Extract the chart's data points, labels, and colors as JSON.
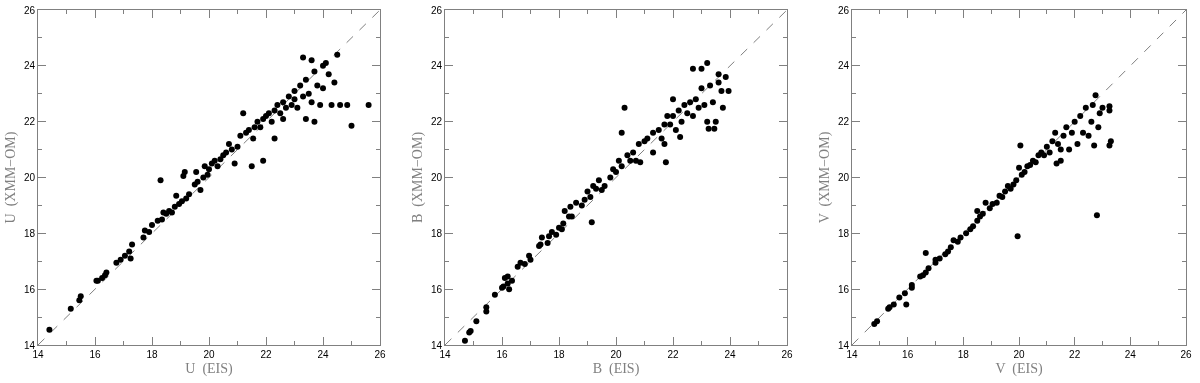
{
  "chart_data": [
    {
      "type": "scatter",
      "xlabel": "U  (EIS)",
      "ylabel": "U  (XMM−OM)",
      "marker": "circle",
      "grid": false,
      "xlim": [
        14,
        26
      ],
      "ylim": [
        14,
        26
      ],
      "xticks": [
        14,
        {
          "value": 15,
          "label": null
        },
        16,
        {
          "value": 17,
          "label": null
        },
        18,
        {
          "value": 19,
          "label": null
        },
        20,
        {
          "value": 21,
          "label": null
        },
        22,
        {
          "value": 23,
          "label": null
        },
        24,
        {
          "value": 25,
          "label": null
        },
        26
      ],
      "yticks": [
        14,
        {
          "value": 15,
          "label": null
        },
        16,
        {
          "value": 17,
          "label": null
        },
        18,
        {
          "value": 19,
          "label": null
        },
        20,
        {
          "value": 21,
          "label": null
        },
        22,
        {
          "value": 23,
          "label": null
        },
        24,
        {
          "value": 25,
          "label": null
        },
        26
      ],
      "series": [
        {
          "type": "line",
          "marker": "none",
          "line_style": "dashed",
          "color": "#808080",
          "x": [
            14,
            26
          ],
          "values": [
            14,
            26
          ]
        },
        {
          "color": "#000000",
          "x": [
            14.4,
            15.15,
            15.45,
            15.5,
            16.05,
            16.1,
            16.25,
            16.35,
            16.4,
            16.75,
            16.9,
            17.05,
            17.2,
            17.25,
            17.3,
            17.7,
            17.75,
            17.9,
            18.0,
            18.2,
            18.3,
            18.35,
            18.4,
            18.5,
            18.6,
            18.7,
            18.8,
            18.85,
            18.95,
            19.05,
            19.1,
            19.15,
            19.2,
            19.3,
            19.5,
            19.55,
            19.6,
            19.7,
            19.8,
            19.85,
            19.95,
            20.0,
            20.1,
            20.2,
            20.3,
            20.4,
            20.5,
            20.6,
            20.7,
            20.8,
            20.9,
            21.0,
            21.1,
            21.2,
            21.3,
            21.4,
            21.5,
            21.55,
            21.6,
            21.7,
            21.8,
            21.9,
            21.9,
            22.0,
            22.1,
            22.2,
            22.3,
            22.3,
            22.4,
            22.5,
            22.6,
            22.6,
            22.7,
            22.8,
            22.9,
            23.0,
            23.0,
            23.1,
            23.2,
            23.3,
            23.3,
            23.4,
            23.4,
            23.5,
            23.6,
            23.6,
            23.7,
            23.7,
            23.8,
            23.9,
            24.0,
            24.0,
            24.1,
            24.2,
            24.3,
            24.4,
            24.5,
            24.6,
            24.85,
            25.0,
            25.6
          ],
          "values": [
            14.55,
            15.3,
            15.6,
            15.75,
            16.3,
            16.3,
            16.4,
            16.5,
            16.6,
            16.95,
            17.05,
            17.2,
            17.35,
            17.1,
            17.6,
            17.85,
            18.1,
            18.05,
            18.3,
            18.45,
            19.9,
            18.5,
            18.75,
            18.7,
            18.8,
            18.75,
            18.95,
            19.35,
            19.05,
            19.15,
            20.05,
            20.2,
            19.25,
            19.4,
            19.75,
            20.2,
            19.85,
            19.55,
            20.0,
            20.4,
            20.1,
            20.3,
            20.5,
            20.6,
            20.4,
            20.65,
            20.8,
            20.9,
            21.2,
            21.0,
            20.5,
            21.1,
            21.5,
            22.3,
            21.6,
            21.7,
            20.4,
            21.4,
            21.8,
            22.0,
            21.8,
            20.6,
            22.1,
            22.2,
            22.3,
            22.0,
            21.4,
            22.4,
            22.6,
            22.3,
            22.1,
            22.7,
            22.5,
            22.9,
            22.6,
            23.1,
            22.8,
            22.5,
            23.3,
            24.3,
            22.9,
            23.5,
            22.1,
            23.0,
            24.2,
            22.7,
            22.0,
            23.8,
            23.3,
            22.6,
            24.0,
            23.2,
            24.1,
            23.7,
            22.6,
            23.4,
            24.4,
            22.6,
            22.6,
            21.85,
            22.6
          ]
        }
      ]
    },
    {
      "type": "scatter",
      "xlabel": "B  (EIS)",
      "ylabel": "B  (XMM−OM)",
      "marker": "circle",
      "grid": false,
      "xlim": [
        14,
        26
      ],
      "ylim": [
        14,
        26
      ],
      "xticks": [
        14,
        {
          "value": 15,
          "label": null
        },
        16,
        {
          "value": 17,
          "label": null
        },
        18,
        {
          "value": 19,
          "label": null
        },
        20,
        {
          "value": 21,
          "label": null
        },
        22,
        {
          "value": 23,
          "label": null
        },
        24,
        {
          "value": 25,
          "label": null
        },
        26
      ],
      "yticks": [
        14,
        {
          "value": 15,
          "label": null
        },
        16,
        {
          "value": 17,
          "label": null
        },
        18,
        {
          "value": 19,
          "label": null
        },
        20,
        {
          "value": 21,
          "label": null
        },
        22,
        {
          "value": 23,
          "label": null
        },
        24,
        {
          "value": 25,
          "label": null
        },
        26
      ],
      "series": [
        {
          "type": "line",
          "marker": "none",
          "line_style": "dashed",
          "color": "#808080",
          "x": [
            14,
            26
          ],
          "values": [
            14,
            26
          ]
        },
        {
          "color": "#000000",
          "x": [
            14.7,
            14.85,
            14.9,
            15.1,
            15.45,
            15.45,
            15.75,
            16.0,
            16.05,
            16.1,
            16.2,
            16.2,
            16.25,
            16.35,
            16.55,
            16.65,
            16.8,
            16.95,
            17.0,
            17.3,
            17.35,
            17.4,
            17.6,
            17.65,
            17.75,
            17.9,
            18.0,
            18.1,
            18.15,
            18.2,
            18.35,
            18.4,
            18.45,
            18.6,
            18.8,
            18.9,
            19.0,
            19.1,
            19.15,
            19.2,
            19.3,
            19.4,
            19.5,
            19.6,
            19.8,
            19.9,
            20.0,
            20.1,
            20.2,
            20.2,
            20.3,
            20.4,
            20.5,
            20.6,
            20.7,
            20.8,
            20.85,
            21.0,
            21.1,
            21.3,
            21.3,
            21.5,
            21.6,
            21.7,
            21.7,
            21.75,
            21.8,
            21.9,
            22.0,
            22.0,
            22.1,
            22.2,
            22.25,
            22.3,
            22.4,
            22.5,
            22.6,
            22.7,
            22.7,
            22.8,
            22.9,
            23.0,
            23.0,
            23.1,
            23.2,
            23.2,
            23.25,
            23.3,
            23.4,
            23.45,
            23.5,
            23.6,
            23.6,
            23.7,
            23.75,
            23.85,
            23.95
          ],
          "values": [
            14.15,
            14.45,
            14.5,
            14.85,
            15.2,
            15.35,
            15.8,
            16.05,
            16.1,
            16.4,
            16.2,
            16.45,
            16.0,
            16.3,
            16.8,
            16.95,
            16.9,
            17.2,
            17.05,
            17.55,
            17.6,
            17.85,
            17.65,
            17.9,
            18.05,
            17.95,
            18.2,
            18.15,
            18.35,
            18.8,
            18.6,
            18.95,
            18.6,
            19.1,
            19.0,
            19.2,
            19.5,
            19.3,
            18.4,
            19.7,
            19.6,
            19.9,
            19.55,
            19.7,
            20.0,
            20.3,
            20.2,
            20.6,
            20.4,
            21.6,
            22.5,
            20.8,
            20.6,
            20.9,
            20.6,
            21.2,
            20.55,
            21.3,
            21.4,
            20.9,
            21.6,
            21.7,
            21.4,
            21.9,
            21.2,
            20.55,
            22.2,
            21.9,
            22.2,
            22.8,
            21.7,
            22.4,
            21.45,
            22.0,
            22.6,
            22.3,
            22.7,
            23.9,
            22.2,
            22.8,
            22.5,
            23.9,
            23.2,
            22.6,
            24.1,
            22.0,
            21.75,
            23.3,
            22.7,
            21.75,
            22.0,
            23.7,
            23.4,
            23.1,
            22.5,
            23.6,
            23.1
          ]
        }
      ]
    },
    {
      "type": "scatter",
      "xlabel": "V  (EIS)",
      "ylabel": "V  (XMM−OM)",
      "marker": "circle",
      "grid": false,
      "xlim": [
        14,
        26
      ],
      "ylim": [
        14,
        26
      ],
      "xticks": [
        14,
        {
          "value": 15,
          "label": null
        },
        16,
        {
          "value": 17,
          "label": null
        },
        18,
        {
          "value": 19,
          "label": null
        },
        20,
        {
          "value": 21,
          "label": null
        },
        22,
        {
          "value": 23,
          "label": null
        },
        24,
        {
          "value": 25,
          "label": null
        },
        26
      ],
      "yticks": [
        14,
        {
          "value": 15,
          "label": null
        },
        16,
        {
          "value": 17,
          "label": null
        },
        18,
        {
          "value": 19,
          "label": null
        },
        20,
        {
          "value": 21,
          "label": null
        },
        22,
        {
          "value": 23,
          "label": null
        },
        24,
        {
          "value": 25,
          "label": null
        },
        26
      ],
      "series": [
        {
          "type": "line",
          "marker": "none",
          "line_style": "dashed",
          "color": "#808080",
          "x": [
            14,
            26
          ],
          "values": [
            14,
            26
          ]
        },
        {
          "color": "#000000",
          "x": [
            14.8,
            14.9,
            15.3,
            15.35,
            15.5,
            15.7,
            15.9,
            15.95,
            16.15,
            16.15,
            16.45,
            16.55,
            16.65,
            16.65,
            16.75,
            17.0,
            17.0,
            17.15,
            17.35,
            17.45,
            17.55,
            17.65,
            17.8,
            17.9,
            18.1,
            18.25,
            18.35,
            18.5,
            18.5,
            18.6,
            18.7,
            18.8,
            18.95,
            19.05,
            19.2,
            19.3,
            19.4,
            19.5,
            19.6,
            19.7,
            19.8,
            19.9,
            19.95,
            20.0,
            20.05,
            20.1,
            20.2,
            20.3,
            20.4,
            20.5,
            20.6,
            20.7,
            20.8,
            20.9,
            21.0,
            21.1,
            21.2,
            21.3,
            21.35,
            21.4,
            21.5,
            21.5,
            21.6,
            21.7,
            21.8,
            21.9,
            22.0,
            22.1,
            22.2,
            22.3,
            22.4,
            22.5,
            22.6,
            22.65,
            22.7,
            22.75,
            22.8,
            22.85,
            22.9,
            23.0,
            23.25,
            23.25,
            23.25,
            23.3
          ],
          "values": [
            14.75,
            14.85,
            15.3,
            15.35,
            15.45,
            15.7,
            15.85,
            15.45,
            16.05,
            16.15,
            16.45,
            16.5,
            16.6,
            17.3,
            16.75,
            16.95,
            17.05,
            17.1,
            17.25,
            17.35,
            17.5,
            17.75,
            17.7,
            17.85,
            18.0,
            18.15,
            18.25,
            18.45,
            18.8,
            18.6,
            18.7,
            19.1,
            18.9,
            19.05,
            19.1,
            19.35,
            19.3,
            19.5,
            19.7,
            19.6,
            19.75,
            19.9,
            17.9,
            20.35,
            21.15,
            20.1,
            20.2,
            20.4,
            20.45,
            20.6,
            20.55,
            20.8,
            20.9,
            20.8,
            21.1,
            20.9,
            21.3,
            21.6,
            20.5,
            21.2,
            21.0,
            20.6,
            21.5,
            21.8,
            21.0,
            21.6,
            22.0,
            21.2,
            22.2,
            21.6,
            22.5,
            21.5,
            22.0,
            22.6,
            21.15,
            22.95,
            18.65,
            21.8,
            22.3,
            22.5,
            22.55,
            22.4,
            21.15,
            21.3
          ]
        }
      ]
    }
  ]
}
